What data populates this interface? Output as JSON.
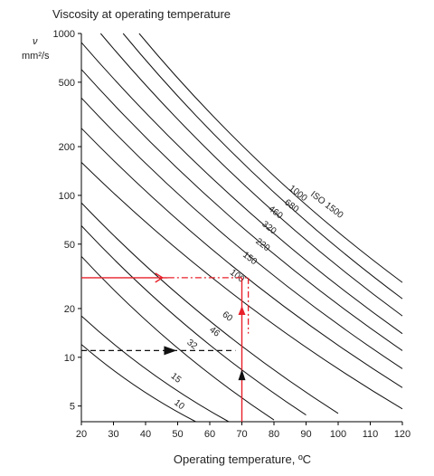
{
  "chart_data": {
    "type": "line",
    "title": "Viscosity at operating temperature",
    "xlabel": "Operating temperature, ºC",
    "ylabel_symbol": "ν",
    "ylabel_unit": "mm²/s",
    "y_scale": "log",
    "xlim": [
      20,
      120
    ],
    "ylim": [
      4,
      1000
    ],
    "x_ticks": [
      20,
      30,
      40,
      50,
      60,
      70,
      80,
      90,
      100,
      110,
      120
    ],
    "y_ticks": [
      5,
      10,
      20,
      50,
      100,
      200,
      500,
      1000
    ],
    "grid": false,
    "series": [
      {
        "name": "10",
        "x": [
          20,
          60
        ],
        "y": [
          12,
          3.5
        ]
      },
      {
        "name": "15",
        "x": [
          20,
          70
        ],
        "y": [
          18,
          3.5
        ]
      },
      {
        "name": "32",
        "x": [
          20,
          80
        ],
        "y": [
          42,
          4.1
        ]
      },
      {
        "name": "46",
        "x": [
          20,
          90
        ],
        "y": [
          65,
          4.4
        ]
      },
      {
        "name": "60",
        "x": [
          20,
          100
        ],
        "y": [
          90,
          4.5
        ]
      },
      {
        "name": "100",
        "x": [
          20,
          120
        ],
        "y": [
          160,
          4.8
        ]
      },
      {
        "name": "150",
        "x": [
          20,
          120
        ],
        "y": [
          260,
          6.5
        ]
      },
      {
        "name": "220",
        "x": [
          20,
          120
        ],
        "y": [
          400,
          8.5
        ]
      },
      {
        "name": "320",
        "x": [
          20,
          120
        ],
        "y": [
          600,
          11
        ]
      },
      {
        "name": "460",
        "x": [
          20,
          120
        ],
        "y": [
          880,
          14
        ]
      },
      {
        "name": "680",
        "x": [
          26,
          120
        ],
        "y": [
          1000,
          18
        ]
      },
      {
        "name": "1000",
        "x": [
          33,
          120
        ],
        "y": [
          1000,
          23
        ]
      },
      {
        "name": "ISO 1500",
        "x": [
          38,
          120
        ],
        "y": [
          1000,
          29
        ]
      }
    ],
    "annotations": [
      {
        "type": "red-path",
        "points": [
          [
            70,
            4
          ],
          [
            70,
            31
          ],
          [
            20,
            31
          ]
        ],
        "style": "solid-with-dashdot"
      },
      {
        "type": "black-dashed-path",
        "points": [
          [
            20,
            11
          ],
          [
            68,
            11
          ]
        ]
      },
      {
        "type": "black-arrow",
        "points": [
          [
            70,
            4
          ],
          [
            70,
            10
          ]
        ]
      }
    ]
  }
}
